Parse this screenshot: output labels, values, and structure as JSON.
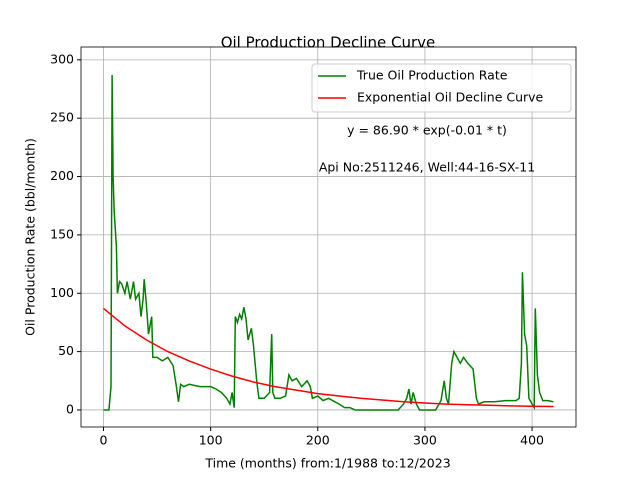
{
  "chart_data": {
    "type": "line",
    "title": "Oil Production Decline Curve",
    "xlabel": "Time (months) from:1/1988 to:12/2023",
    "ylabel": "Oil Production Rate (bbl/month)",
    "annotations": [
      "y = 86.90 * exp(-0.01 * t)",
      "Api No:2511246, Well:44-16-SX-11"
    ],
    "xlim": [
      -21,
      441
    ],
    "ylim": [
      -14.6,
      311
    ],
    "xticks": [
      0,
      100,
      200,
      300,
      400
    ],
    "yticks": [
      0,
      50,
      100,
      150,
      200,
      250,
      300
    ],
    "grid": true,
    "legend": "upper right",
    "series": [
      {
        "name": "True Oil Production Rate",
        "color": "#008000",
        "x": [
          0,
          5,
          7,
          8,
          9,
          10,
          12,
          13,
          15,
          17,
          20,
          22,
          25,
          28,
          30,
          33,
          35,
          37,
          38,
          40,
          42,
          44,
          45,
          46,
          50,
          55,
          60,
          65,
          68,
          70,
          72,
          75,
          80,
          90,
          100,
          105,
          110,
          115,
          118,
          120,
          122,
          123,
          125,
          127,
          129,
          131,
          133,
          135,
          138,
          140,
          143,
          145,
          150,
          155,
          157,
          158,
          160,
          165,
          170,
          173,
          176,
          180,
          185,
          190,
          193,
          195,
          200,
          205,
          210,
          220,
          225,
          230,
          235,
          240,
          250,
          260,
          270,
          275,
          280,
          283,
          285,
          287,
          289,
          292,
          295,
          305,
          310,
          315,
          318,
          320,
          322,
          325,
          327,
          330,
          333,
          336,
          340,
          345,
          348,
          350,
          355,
          365,
          375,
          385,
          388,
          390,
          391,
          393,
          395,
          397,
          400,
          402,
          403,
          405,
          407,
          410,
          415,
          420
        ],
        "values": [
          0,
          0,
          20,
          287,
          200,
          170,
          140,
          100,
          110,
          108,
          100,
          110,
          95,
          110,
          95,
          100,
          80,
          95,
          112,
          90,
          65,
          75,
          80,
          45,
          45,
          42,
          45,
          38,
          20,
          7,
          22,
          20,
          22,
          20,
          20,
          18,
          15,
          10,
          5,
          15,
          2,
          80,
          75,
          82,
          78,
          88,
          78,
          60,
          70,
          55,
          25,
          10,
          10,
          15,
          65,
          15,
          10,
          10,
          12,
          30,
          25,
          27,
          20,
          25,
          20,
          10,
          12,
          8,
          10,
          5,
          2,
          2,
          0,
          0,
          0,
          0,
          0,
          0,
          5,
          10,
          18,
          5,
          15,
          5,
          0,
          0,
          0,
          8,
          25,
          10,
          5,
          40,
          50,
          45,
          40,
          45,
          40,
          35,
          10,
          5,
          7,
          7,
          8,
          8,
          10,
          40,
          118,
          65,
          55,
          10,
          5,
          2,
          87,
          30,
          15,
          8,
          8,
          7
        ]
      },
      {
        "name": "Exponential Oil Decline Curve",
        "color": "#ff0000",
        "x": [
          0,
          20,
          40,
          60,
          80,
          100,
          120,
          140,
          160,
          180,
          200,
          220,
          240,
          260,
          280,
          300,
          320,
          340,
          360,
          380,
          400,
          420
        ],
        "values": [
          87,
          72,
          60,
          50,
          42,
          35,
          29,
          24,
          20,
          17,
          14,
          12,
          10,
          8.5,
          7,
          6,
          5,
          4.5,
          4,
          3.5,
          3.2,
          3
        ]
      }
    ]
  }
}
